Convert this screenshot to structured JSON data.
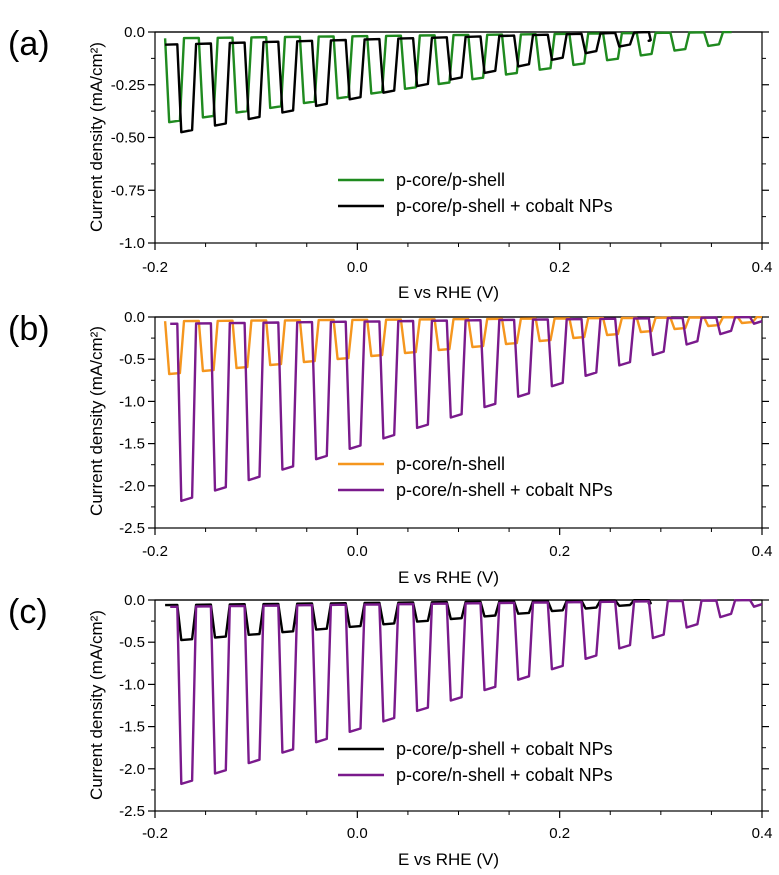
{
  "colors": {
    "green": "#1f8a1f",
    "black": "#000000",
    "orange": "#f5961e",
    "purple": "#7a1a8c"
  },
  "chart_data": [
    {
      "type": "line",
      "panel_label": "(a)",
      "xlabel": "E vs RHE (V)",
      "ylabel": "Current density (mA/cm²)",
      "xlim": [
        -0.2,
        0.4
      ],
      "ylim": [
        -1.0,
        0.0
      ],
      "xticks": [
        -0.2,
        0.0,
        0.2,
        0.4
      ],
      "xtick_labels": [
        "-0.2",
        "0.0",
        "0.2",
        "0.4"
      ],
      "yticks": [
        0.0,
        -0.25,
        -0.5,
        -0.75,
        -1.0
      ],
      "ytick_labels": [
        "0.0",
        "-0.25",
        "-0.50",
        "-0.75",
        "-1.0"
      ],
      "legend_position": "bottom-right",
      "series": [
        {
          "name": "p-core/p-shell",
          "color": "green",
          "pattern": {
            "x_start": -0.19,
            "x_end": 0.37,
            "period": 0.0333,
            "on_start": -0.19,
            "duty": 0.5,
            "light_start": -0.43,
            "light_end": -0.05,
            "dark_start": -0.03,
            "dark_end": 0.0
          }
        },
        {
          "name": "p-core/p-shell + cobalt NPs",
          "color": "black",
          "pattern": {
            "x_start": -0.19,
            "x_end": 0.29,
            "period": 0.0333,
            "on_start": -0.178,
            "duty": 0.5,
            "light_start": -0.49,
            "light_end": -0.04,
            "dark_start": -0.06,
            "dark_end": 0.0
          }
        }
      ]
    },
    {
      "type": "line",
      "panel_label": "(b)",
      "xlabel": "E vs RHE (V)",
      "ylabel": "Current density (mA/cm²)",
      "xlim": [
        -0.2,
        0.4
      ],
      "ylim": [
        -2.5,
        0.0
      ],
      "xticks": [
        -0.2,
        0.0,
        0.2,
        0.4
      ],
      "xtick_labels": [
        "-0.2",
        "0.0",
        "0.2",
        "0.4"
      ],
      "yticks": [
        0.0,
        -0.5,
        -1.0,
        -1.5,
        -2.0,
        -2.5
      ],
      "ytick_labels": [
        "0.0",
        "-0.5",
        "-1.0",
        "-1.5",
        "-2.0",
        "-2.5"
      ],
      "legend_position": "bottom-right",
      "series": [
        {
          "name": "p-core/n-shell",
          "color": "orange",
          "pattern": {
            "x_start": -0.19,
            "x_end": 0.4,
            "period": 0.0333,
            "on_start": -0.19,
            "duty": 0.5,
            "light_start": -0.68,
            "light_end": -0.05,
            "dark_start": -0.05,
            "dark_end": 0.0
          }
        },
        {
          "name": "p-core/n-shell + cobalt NPs",
          "color": "purple",
          "pattern": {
            "x_start": -0.185,
            "x_end": 0.4,
            "period": 0.0333,
            "on_start": -0.178,
            "duty": 0.5,
            "light_start": -2.22,
            "light_end": -0.05,
            "dark_start": -0.08,
            "dark_end": 0.0
          }
        }
      ]
    },
    {
      "type": "line",
      "panel_label": "(c)",
      "xlabel": "E vs RHE (V)",
      "ylabel": "Current density (mA/cm²)",
      "xlim": [
        -0.2,
        0.4
      ],
      "ylim": [
        -2.5,
        0.0
      ],
      "xticks": [
        -0.2,
        0.0,
        0.2,
        0.4
      ],
      "xtick_labels": [
        "-0.2",
        "0.0",
        "0.2",
        "0.4"
      ],
      "yticks": [
        0.0,
        -0.5,
        -1.0,
        -1.5,
        -2.0,
        -2.5
      ],
      "ytick_labels": [
        "0.0",
        "-0.5",
        "-1.0",
        "-1.5",
        "-2.0",
        "-2.5"
      ],
      "legend_position": "bottom-right",
      "series": [
        {
          "name": "p-core/p-shell + cobalt NPs",
          "color": "black",
          "pattern": {
            "x_start": -0.19,
            "x_end": 0.29,
            "period": 0.0333,
            "on_start": -0.178,
            "duty": 0.5,
            "light_start": -0.49,
            "light_end": -0.04,
            "dark_start": -0.06,
            "dark_end": 0.0
          }
        },
        {
          "name": "p-core/n-shell + cobalt NPs",
          "color": "purple",
          "pattern": {
            "x_start": -0.185,
            "x_end": 0.4,
            "period": 0.0333,
            "on_start": -0.178,
            "duty": 0.5,
            "light_start": -2.22,
            "light_end": -0.05,
            "dark_start": -0.08,
            "dark_end": 0.0
          }
        }
      ]
    }
  ]
}
